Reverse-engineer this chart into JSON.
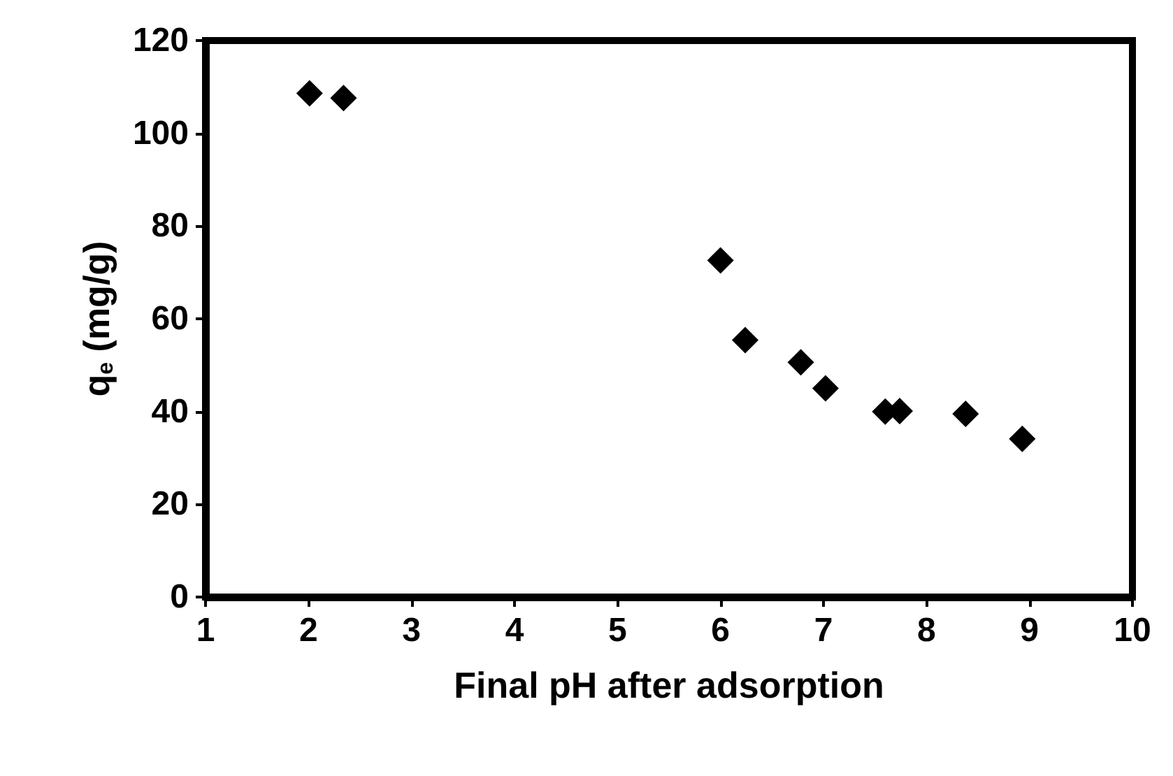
{
  "chart_data": {
    "type": "scatter",
    "xlabel": "Final pH after adsorption",
    "ylabel": "q$_{e}$ (mg/g)",
    "x": [
      2.01,
      2.34,
      6.0,
      6.24,
      6.78,
      7.02,
      7.6,
      7.74,
      8.38,
      8.93
    ],
    "values": [
      108.6,
      107.6,
      72.6,
      55.4,
      50.6,
      45.0,
      40.0,
      40.1,
      39.5,
      34.1
    ],
    "color": "#000000",
    "marker": "diamond",
    "xlim": [
      1,
      10
    ],
    "xticks": [
      1,
      2,
      3,
      4,
      5,
      6,
      7,
      8,
      9,
      10
    ],
    "ylim": [
      0,
      120
    ],
    "yticks": [
      0,
      20,
      40,
      60,
      80,
      100,
      120
    ],
    "grid": false
  }
}
